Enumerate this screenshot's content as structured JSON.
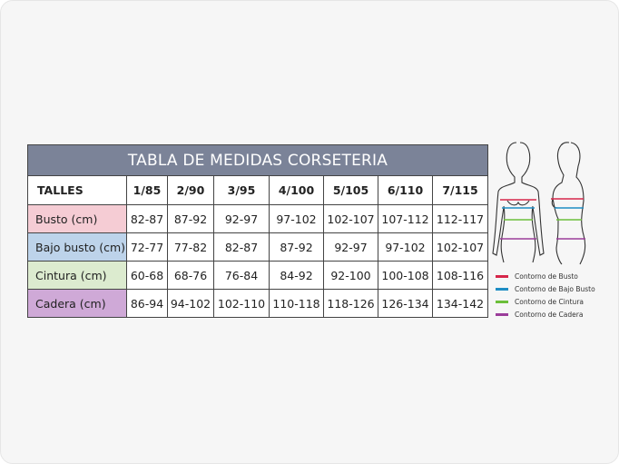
{
  "title": "TABLA DE MEDIDAS CORSETERIA",
  "table": {
    "header": [
      "TALLES",
      "1/85",
      "2/90",
      "3/95",
      "4/100",
      "5/105",
      "6/110",
      "7/115"
    ],
    "rows": [
      [
        "Busto (cm)",
        "82-87",
        "87-92",
        "92-97",
        "97-102",
        "102-107",
        "107-112",
        "112-117"
      ],
      [
        "Bajo busto (cm)",
        "72-77",
        "77-82",
        "82-87",
        "87-92",
        "92-97",
        "97-102",
        "102-107"
      ],
      [
        "Cintura (cm)",
        "60-68",
        "68-76",
        "76-84",
        "84-92",
        "92-100",
        "100-108",
        "108-116"
      ],
      [
        "Cadera (cm)",
        "86-94",
        "94-102",
        "102-110",
        "110-118",
        "118-126",
        "126-134",
        "134-142"
      ]
    ]
  },
  "legend": [
    {
      "label": "Contorno de Busto",
      "color": "#d6264a"
    },
    {
      "label": "Contorno de Bajo Busto",
      "color": "#1f8dc4"
    },
    {
      "label": "Contorno de Cintura",
      "color": "#6cbf3a"
    },
    {
      "label": "Contorno de Cadera",
      "color": "#9b3d9a"
    }
  ]
}
